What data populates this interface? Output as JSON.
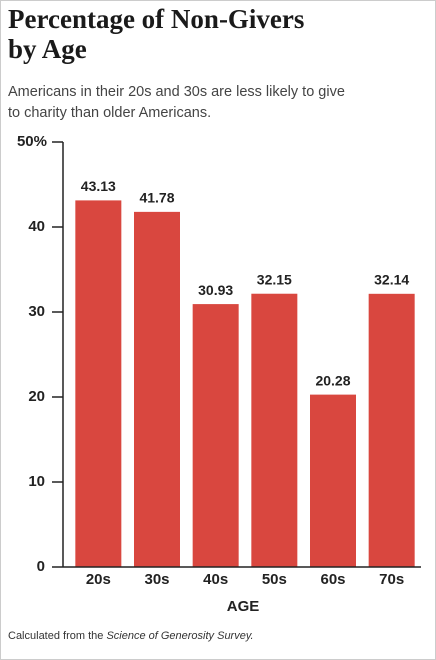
{
  "chart_data": {
    "type": "bar",
    "title": "Percentage of Non-Givers by Age",
    "subtitle": "Americans in their 20s and 30s are less likely to give to charity than older Americans.",
    "x_label": "AGE",
    "categories": [
      "20s",
      "30s",
      "40s",
      "50s",
      "60s",
      "70s"
    ],
    "values": [
      43.13,
      41.78,
      30.93,
      32.15,
      20.28,
      32.14
    ],
    "color": "#d9473f",
    "ylim": [
      0,
      50
    ],
    "yticks": [
      0,
      10,
      20,
      30,
      40,
      {
        "value": 50,
        "label": "50%"
      }
    ],
    "note": {
      "prefix": "Calculated from the ",
      "italic": "Science of Generosity Survey."
    }
  }
}
